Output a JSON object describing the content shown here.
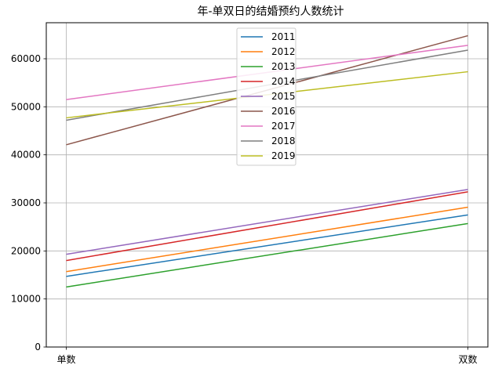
{
  "chart_data": {
    "type": "line",
    "title": "年-单双日的结婚预约人数统计",
    "categories": [
      "单数",
      "双数"
    ],
    "ylim": [
      0,
      67500
    ],
    "yticks": [
      0,
      10000,
      20000,
      30000,
      40000,
      50000,
      60000
    ],
    "grid": true,
    "legend_position": "top-center",
    "series": [
      {
        "name": "2011",
        "color": "#1f77b4",
        "values": [
          14700,
          27500
        ]
      },
      {
        "name": "2012",
        "color": "#ff7f0e",
        "values": [
          15700,
          29100
        ]
      },
      {
        "name": "2013",
        "color": "#2ca02c",
        "values": [
          12500,
          25700
        ]
      },
      {
        "name": "2014",
        "color": "#d62728",
        "values": [
          18000,
          32300
        ]
      },
      {
        "name": "2015",
        "color": "#9467bd",
        "values": [
          19300,
          32800
        ]
      },
      {
        "name": "2016",
        "color": "#8c564b",
        "values": [
          42100,
          64800
        ]
      },
      {
        "name": "2017",
        "color": "#e377c2",
        "values": [
          51500,
          62800
        ]
      },
      {
        "name": "2018",
        "color": "#7f7f7f",
        "values": [
          47200,
          61800
        ]
      },
      {
        "name": "2019",
        "color": "#bcbd22",
        "values": [
          47700,
          57300
        ]
      }
    ]
  }
}
